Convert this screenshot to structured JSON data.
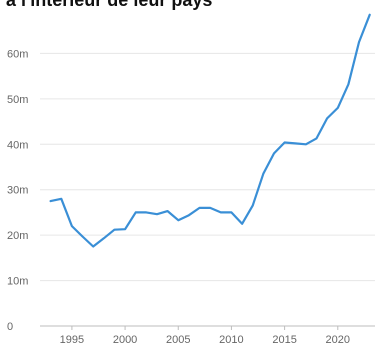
{
  "title_fragment": "à l'intérieur de leur pays",
  "chart_data": {
    "type": "line",
    "title": "",
    "xlabel": "",
    "ylabel": "",
    "ylim": [
      0,
      70
    ],
    "y_ticks": [
      0,
      10,
      20,
      30,
      40,
      50,
      60
    ],
    "y_tick_labels": [
      "0",
      "10m",
      "20m",
      "30m",
      "40m",
      "50m",
      "60m"
    ],
    "x_ticks": [
      1995,
      2000,
      2005,
      2010,
      2015,
      2020
    ],
    "x_tick_labels": [
      "1995",
      "2000",
      "2005",
      "2010",
      "2015",
      "2020"
    ],
    "xlim": [
      1992,
      2023.5
    ],
    "grid": true,
    "line_color": "#3a8fd6",
    "series": [
      {
        "x": [
          1993,
          1994,
          1995,
          1996,
          1997,
          1998,
          1999,
          2000,
          2001,
          2002,
          2003,
          2004,
          2005,
          2006,
          2007,
          2008,
          2009,
          2010,
          2011,
          2012,
          2013,
          2014,
          2015,
          2016,
          2017,
          2018,
          2019,
          2020,
          2021,
          2022,
          2023
        ],
        "y": [
          27.5,
          28.0,
          22.0,
          19.7,
          17.5,
          19.3,
          21.2,
          21.3,
          25.0,
          25.0,
          24.6,
          25.3,
          23.3,
          24.4,
          26.0,
          26.0,
          25.0,
          25.0,
          22.5,
          26.5,
          33.5,
          38.0,
          40.4,
          40.2,
          40.0,
          41.3,
          45.7,
          48.0,
          53.2,
          62.5,
          68.5
        ]
      }
    ]
  }
}
